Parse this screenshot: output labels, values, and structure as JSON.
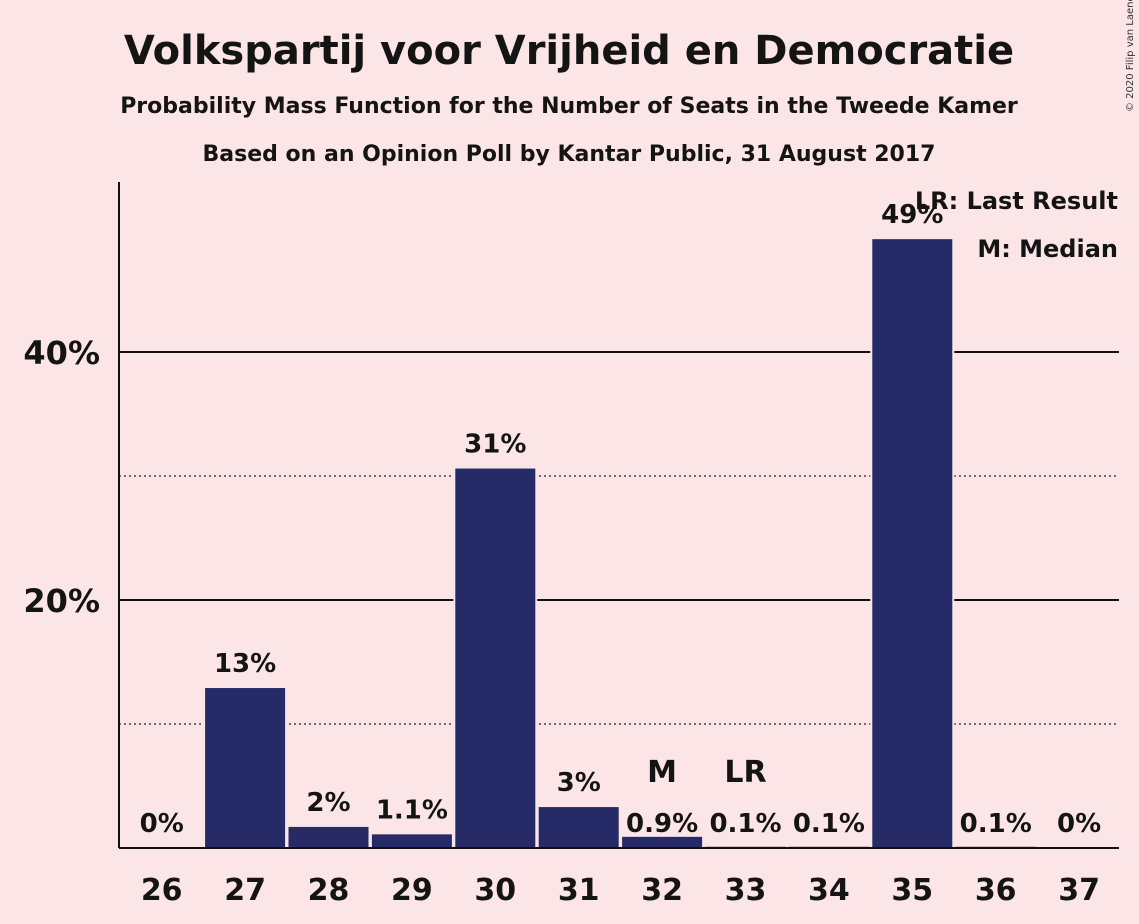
{
  "chart_data": {
    "type": "bar",
    "title": "Volkspartij voor Vrijheid en Democratie",
    "subtitle": "Probability Mass Function for the Number of Seats in the Tweede Kamer",
    "subtitle2": "Based on an Opinion Poll by Kantar Public, 31 August 2017",
    "categories": [
      "26",
      "27",
      "28",
      "29",
      "30",
      "31",
      "32",
      "33",
      "34",
      "35",
      "36",
      "37"
    ],
    "values": [
      0,
      12.9,
      1.7,
      1.1,
      30.6,
      3.3,
      0.9,
      0.1,
      0.1,
      49.1,
      0.1,
      0
    ],
    "value_labels": [
      "0%",
      "13%",
      "2%",
      "1.1%",
      "31%",
      "3%",
      "0.9%",
      "0.1%",
      "0.1%",
      "49%",
      "0.1%",
      "0%"
    ],
    "ylim": [
      0,
      52
    ],
    "yticks": [
      {
        "value": 20,
        "label": "20%"
      },
      {
        "value": 40,
        "label": "40%"
      }
    ],
    "minor_gridlines": [
      10,
      30
    ],
    "markers": [
      {
        "category": "32",
        "label": "M"
      },
      {
        "category": "33",
        "label": "LR"
      }
    ],
    "legend": {
      "position": "top-right",
      "entries": [
        "LR: Last Result",
        "M: Median"
      ]
    },
    "bar_color": "#262a66",
    "background_color": "#fbe5e7"
  },
  "copyright": "© 2020 Filip van Laenen"
}
